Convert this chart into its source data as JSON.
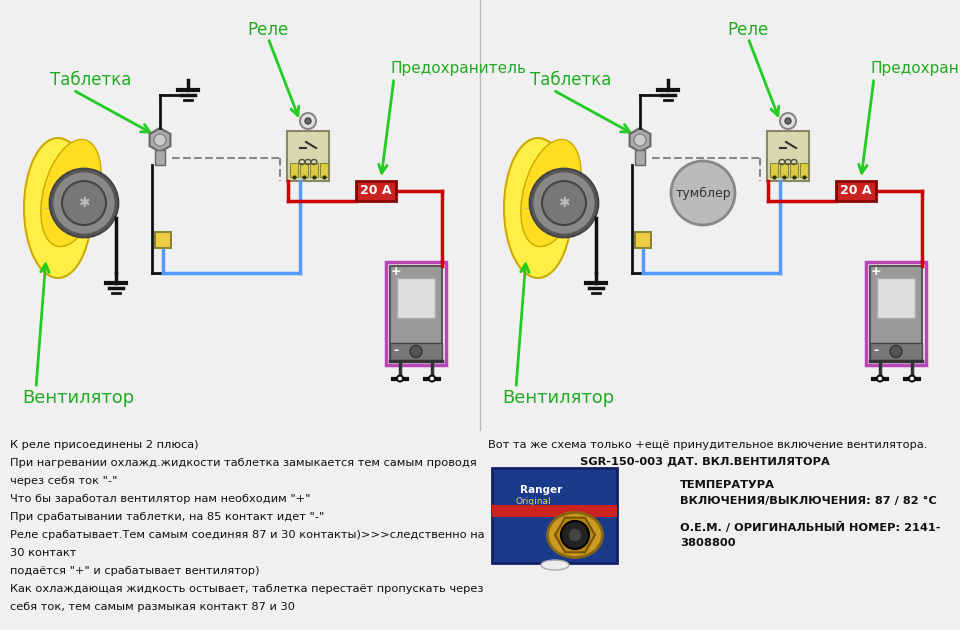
{
  "bg_color": "#f0f0f0",
  "left_diagram": {
    "label_rele": "Реле",
    "label_tabletka": "Таблетка",
    "label_predohranitel": "Предохранитель",
    "label_ventilator": "Вентилятор",
    "fuse_text": "20 А"
  },
  "right_diagram": {
    "label_rele": "Реле",
    "label_tabletka": "Таблетка",
    "label_predohranitel": "Предохранитель",
    "label_ventilator": "Вентилятор",
    "label_tumbler": "тумблер",
    "fuse_text": "20 А"
  },
  "left_text_lines": [
    "К реле присоединены 2 плюса)",
    "При нагревании охлажд.жидкости таблетка замыкается тем самым проводя",
    "через себя ток \"-\"",
    "Что бы заработал вентилятор нам необходим \"+\"",
    "При срабатывании таблетки, на 85 контакт идет \"-\"",
    "Реле срабатывает.Тем самым соединяя 87 и 30 контакты)>>>следственно на",
    "30 контакт",
    "подаётся \"+\" и срабатывает вентилятор)",
    "Как охлаждающая жидкость остывает, таблетка перестаёт пропускать через",
    "себя ток, тем самым размыкая контакт 87 и 30"
  ],
  "right_text_line1": "Вот та же схема только +ещё принудительное включение вентилятора.",
  "right_text_line2": "SGR-150-003 ДАТ. ВКЛ.ВЕНТИЛЯТОРА",
  "right_text_line3": "ТЕМПЕРАТУРА",
  "right_text_line4": "ВКЛЮЧЕНИЯ/ВЫКЛЮЧЕНИЯ: 87 / 82 °С",
  "right_text_line5": "О.Е.М. / ОРИГИНАЛЬНЫЙ НОМЕР: 2141-",
  "right_text_line6": "3808800",
  "colors": {
    "green_arrow": "#22cc22",
    "green_label": "#22aa22",
    "red_wire": "#cc0000",
    "blue_wire": "#5599ff",
    "black_wire": "#111111",
    "fuse_red": "#cc2222",
    "fuse_text": "#ffffff",
    "relay_body": "#d8d8b0",
    "relay_pins": "#ddcc44",
    "battery_border": "#bb44bb",
    "battery_body": "#aaaaaa",
    "battery_light": "#dddddd",
    "fan_yellow": "#ffee44",
    "fan_gray": "#999999",
    "tumbler_fill": "#bbbbbb",
    "tumbler_border": "#888888",
    "text_color": "#111111",
    "connector_yellow": "#eecc44",
    "bg_diagram": "#e8e8e8"
  }
}
